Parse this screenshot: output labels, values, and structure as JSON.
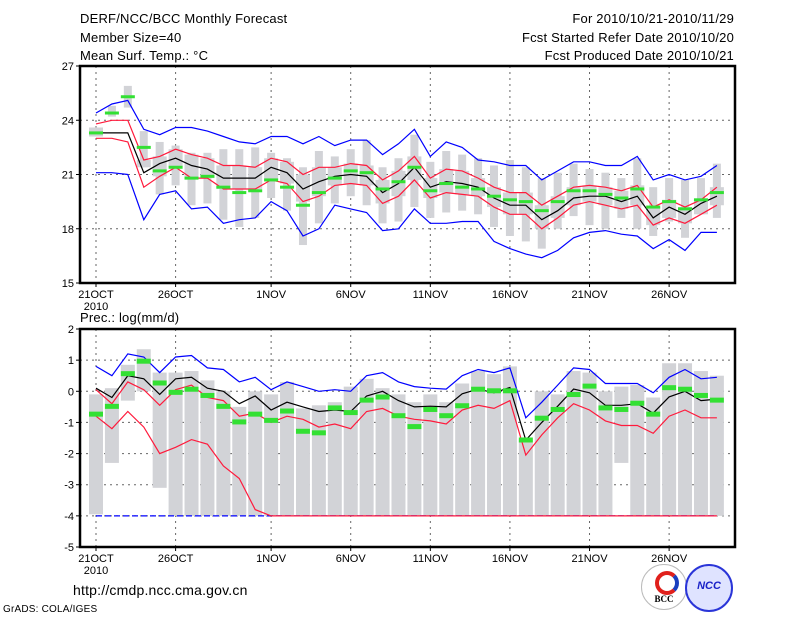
{
  "header": {
    "title": "DERF/NCC/BCC Monthly Forecast",
    "member_size": "Member Size=40",
    "variable": "Mean Surf. Temp.: °C",
    "period": "For 2010/10/21-2010/11/29",
    "start_date": "Fcst Started Refer Date 2010/10/20",
    "produced_date": "Fcst Produced Date 2010/10/21"
  },
  "footer": {
    "url": "http://cmdp.ncc.cma.gov.cn",
    "credit": "GrADS: COLA/IGES",
    "logo_bcc": "BCC",
    "logo_ncc": "NCC"
  },
  "colors": {
    "mean": "#000000",
    "spread": "#ff1a3c",
    "extreme": "#0000ff",
    "observed": "#33e033",
    "members": "#d2d3d7",
    "grid": "#666666"
  },
  "chart_data": [
    {
      "type": "line",
      "title": "Mean Surf. Temp.: °C",
      "ylim": [
        15,
        27
      ],
      "yticks": [
        "15",
        "18",
        "21",
        "24",
        "27"
      ],
      "ytick_values": [
        15,
        18,
        21,
        24,
        27
      ],
      "xtick_days": [
        0,
        5,
        11,
        16,
        21,
        26,
        31,
        36
      ],
      "xtick_labels": [
        "21OCT",
        "26OCT",
        "1NOV",
        "6NOV",
        "11NOV",
        "16NOV",
        "21NOV",
        "26NOV"
      ],
      "xtick_year": "2010",
      "n_days": 40,
      "grid": true,
      "series": {
        "ens_max": [
          24.4,
          24.9,
          25.1,
          23.5,
          23.2,
          23.6,
          23.6,
          23.4,
          23.1,
          22.8,
          22.7,
          23.1,
          23.1,
          22.7,
          23.1,
          22.6,
          22.9,
          22.9,
          22.1,
          22.7,
          23.5,
          22.0,
          22.8,
          22.5,
          21.8,
          21.7,
          21.5,
          21.5,
          20.7,
          21.2,
          21.7,
          21.7,
          21.5,
          21.5,
          22.0,
          20.7,
          21.0,
          20.7,
          20.9,
          21.5
        ],
        "upper": [
          23.8,
          24.0,
          24.0,
          21.8,
          22.0,
          22.4,
          22.1,
          21.9,
          21.5,
          21.5,
          21.4,
          21.9,
          21.7,
          21.0,
          21.4,
          21.4,
          21.6,
          21.5,
          20.7,
          21.2,
          22.0,
          20.8,
          21.3,
          21.2,
          20.8,
          20.3,
          20.0,
          20.0,
          19.3,
          19.8,
          20.3,
          20.4,
          20.3,
          20.1,
          20.4,
          19.2,
          19.6,
          19.2,
          19.6,
          20.3
        ],
        "mean": [
          23.3,
          23.3,
          23.3,
          21.1,
          21.6,
          21.9,
          21.5,
          21.3,
          20.8,
          20.8,
          20.8,
          21.4,
          21.1,
          20.2,
          20.6,
          20.9,
          21.0,
          20.9,
          20.0,
          20.5,
          21.4,
          20.3,
          20.6,
          20.5,
          20.3,
          19.7,
          19.3,
          19.3,
          18.5,
          19.0,
          19.7,
          19.8,
          19.8,
          19.5,
          19.8,
          18.6,
          19.2,
          18.8,
          19.4,
          19.8
        ],
        "lower": [
          23.0,
          23.0,
          22.8,
          20.3,
          20.9,
          21.4,
          20.8,
          20.8,
          20.2,
          20.2,
          20.2,
          20.7,
          20.5,
          19.5,
          19.8,
          20.4,
          20.5,
          20.4,
          19.4,
          19.8,
          20.7,
          19.7,
          20.0,
          19.9,
          19.8,
          19.2,
          18.8,
          18.8,
          18.0,
          18.6,
          19.3,
          19.5,
          19.3,
          19.1,
          19.3,
          18.2,
          18.6,
          18.3,
          18.8,
          19.3
        ],
        "ens_min": [
          21.1,
          21.1,
          21.0,
          18.5,
          19.9,
          20.1,
          19.1,
          19.2,
          18.3,
          18.5,
          18.6,
          19.5,
          19.0,
          17.6,
          18.0,
          19.3,
          19.1,
          18.9,
          17.9,
          18.0,
          19.1,
          18.3,
          18.3,
          18.4,
          18.4,
          17.3,
          16.9,
          16.6,
          16.4,
          16.8,
          17.5,
          17.8,
          17.9,
          17.7,
          17.6,
          16.9,
          17.4,
          16.8,
          17.8,
          17.8
        ],
        "observed": [
          23.3,
          24.4,
          25.3,
          22.5,
          21.2,
          21.4,
          20.8,
          20.9,
          20.3,
          20.0,
          20.1,
          20.7,
          20.3,
          19.3,
          20.0,
          20.8,
          21.2,
          21.1,
          20.2,
          20.6,
          21.4,
          20.1,
          20.5,
          20.3,
          20.2,
          19.8,
          19.6,
          19.5,
          19.0,
          19.5,
          20.1,
          20.1,
          19.9,
          19.7,
          20.2,
          19.2,
          19.5,
          19.1,
          19.6,
          20.0
        ],
        "members_high": [
          23.6,
          24.8,
          25.9,
          23.4,
          22.8,
          22.6,
          22.2,
          22.2,
          22.4,
          22.4,
          22.5,
          22.2,
          21.9,
          21.4,
          22.3,
          22.0,
          22.4,
          22.9,
          21.4,
          21.9,
          23.2,
          21.7,
          22.3,
          22.1,
          21.9,
          21.5,
          21.8,
          21.4,
          20.8,
          21.1,
          21.6,
          21.3,
          21.1,
          20.8,
          21.9,
          20.3,
          20.8,
          20.7,
          20.8,
          21.6
        ],
        "members_low": [
          23.1,
          24.2,
          24.7,
          21.4,
          19.9,
          20.4,
          19.3,
          19.4,
          18.5,
          18.1,
          18.6,
          19.7,
          19.0,
          17.1,
          18.3,
          19.4,
          19.8,
          19.3,
          18.3,
          18.4,
          19.2,
          18.6,
          18.9,
          19.0,
          18.8,
          18.1,
          17.6,
          17.3,
          16.9,
          18.0,
          18.7,
          18.2,
          18.0,
          18.6,
          18.0,
          17.6,
          18.4,
          17.5,
          18.8,
          18.6
        ]
      }
    },
    {
      "type": "line",
      "title": "Prec.: log(mm/d)",
      "ylim": [
        -5,
        2
      ],
      "yticks": [
        "-5",
        "-4",
        "-3",
        "-2",
        "-1",
        "0",
        "1",
        "2"
      ],
      "ytick_values": [
        -5,
        -4,
        -3,
        -2,
        -1,
        0,
        1,
        2
      ],
      "xtick_days": [
        0,
        5,
        11,
        16,
        21,
        26,
        31,
        36
      ],
      "xtick_labels": [
        "21OCT",
        "26OCT",
        "1NOV",
        "6NOV",
        "11NOV",
        "16NOV",
        "21NOV",
        "26NOV"
      ],
      "xtick_year": "2010",
      "n_days": 40,
      "grid": true,
      "series": {
        "ens_max": [
          0.8,
          0.5,
          1.2,
          1.1,
          0.6,
          1.1,
          1.15,
          0.75,
          0.7,
          0.3,
          0.45,
          0.05,
          0.3,
          0.15,
          0.0,
          0.05,
          0.0,
          0.5,
          0.6,
          0.3,
          0.15,
          0.1,
          0.07,
          0.5,
          0.7,
          0.6,
          0.75,
          -0.85,
          -0.35,
          0.2,
          0.75,
          0.7,
          0.25,
          0.25,
          0.25,
          -0.05,
          0.45,
          0.7,
          0.4,
          0.45
        ],
        "upper": [
          0.05,
          -0.4,
          0.3,
          0.05,
          -0.45,
          0.05,
          0.2,
          -0.2,
          -0.3,
          -0.8,
          -0.7,
          -1.0,
          -0.8,
          -0.9,
          -1.15,
          -1.05,
          -1.2,
          -0.65,
          -0.55,
          -0.8,
          -0.9,
          -0.95,
          -1.05,
          -0.6,
          -0.45,
          -0.55,
          -0.3,
          -2.05,
          -1.4,
          -0.85,
          -0.4,
          -0.6,
          -0.95,
          -1.1,
          -1.1,
          -1.35,
          -0.8,
          -0.6,
          -0.85,
          -0.85
        ],
        "mean": [
          0.1,
          -0.2,
          0.5,
          0.4,
          -0.1,
          0.4,
          0.45,
          0.1,
          0.0,
          -0.4,
          -0.15,
          -0.6,
          -0.35,
          -0.5,
          -0.65,
          -0.6,
          -0.65,
          -0.15,
          0.0,
          -0.3,
          -0.5,
          -0.48,
          -0.5,
          -0.08,
          0.07,
          -0.05,
          0.12,
          -1.57,
          -1.0,
          -0.48,
          0.07,
          -0.05,
          -0.45,
          -0.45,
          -0.4,
          -0.7,
          -0.18,
          0.0,
          -0.3,
          -0.25
        ],
        "lower": [
          -0.8,
          -1.2,
          -0.65,
          -1.15,
          -2.0,
          -1.8,
          -1.55,
          -1.7,
          -2.4,
          -2.8,
          -3.8,
          -4,
          -4,
          -4,
          -4,
          -4,
          -4,
          -4,
          -4,
          -4,
          -4,
          -4,
          -4,
          -4,
          -4,
          -4,
          -4,
          -4,
          -4,
          -4,
          -4,
          -4,
          -4,
          -4,
          -4,
          -4,
          -4,
          -4,
          -4,
          -4
        ],
        "ens_min": [
          -4,
          -4,
          -4,
          -4,
          -4,
          -4,
          -4,
          -4,
          -4,
          -4,
          -4,
          -4,
          -4,
          -4,
          -4,
          -4,
          -4,
          -4,
          -4,
          -4,
          -4,
          -4,
          -4,
          -4,
          -4,
          -4,
          -4,
          -4,
          -4,
          -4,
          -4,
          -4,
          -4,
          -4,
          -4,
          -4,
          -4,
          -4,
          -4,
          -4
        ],
        "observed": [
          -0.75,
          -0.5,
          0.55,
          0.95,
          0.25,
          -0.05,
          0.05,
          -0.15,
          -0.5,
          -1.0,
          -0.75,
          -0.95,
          -0.65,
          -1.3,
          -1.35,
          -0.55,
          -0.7,
          -0.3,
          -0.2,
          -0.8,
          -1.15,
          -0.6,
          -0.8,
          -0.48,
          0.05,
          0.0,
          0.0,
          -1.58,
          -0.88,
          -0.6,
          -0.12,
          0.15,
          -0.55,
          -0.6,
          -0.4,
          -0.75,
          0.1,
          0.05,
          -0.15,
          -0.3
        ],
        "members_high": [
          -0.1,
          0.1,
          0.85,
          1.35,
          0.6,
          0.6,
          0.65,
          0.35,
          0.0,
          -0.5,
          0.0,
          -0.1,
          0.3,
          -0.55,
          -0.45,
          -0.35,
          0.15,
          0.4,
          0.1,
          -0.1,
          -0.35,
          -0.1,
          -0.35,
          0.25,
          0.65,
          0.55,
          0.8,
          -1.55,
          0.0,
          -0.1,
          0.65,
          0.6,
          0.0,
          0.15,
          0.2,
          -0.2,
          0.9,
          0.9,
          0.65,
          0.5
        ],
        "members_low": [
          -3.95,
          -2.3,
          -0.3,
          0.0,
          -3.1,
          -4,
          -4,
          -4,
          -4,
          -4,
          -4,
          -4,
          -4,
          -4,
          -4,
          -4,
          -4,
          -4,
          -4,
          -4,
          -4,
          -4,
          -4,
          -4,
          -4,
          -4,
          -4,
          -4,
          -4,
          -4,
          -4,
          -4,
          -4,
          -2.3,
          -4,
          -4,
          -4,
          -4,
          -4,
          -4
        ]
      }
    }
  ]
}
